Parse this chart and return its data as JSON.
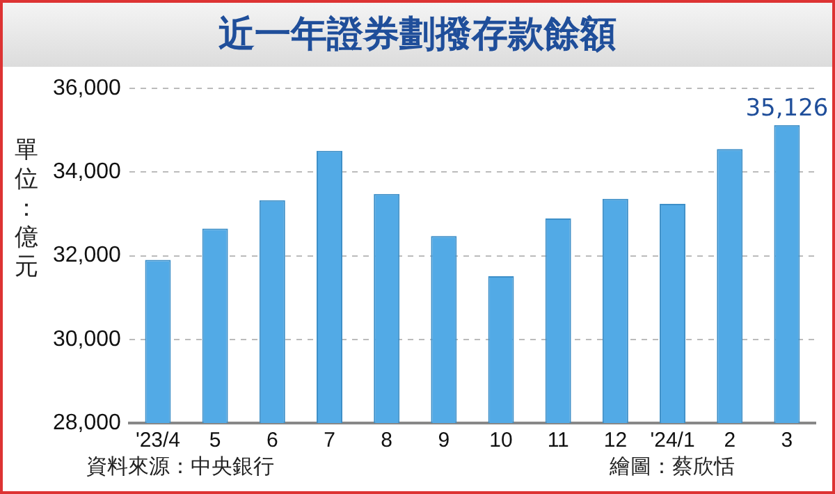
{
  "chart_data": {
    "type": "bar",
    "title": "近一年證券劃撥存款餘額",
    "ylabel": "單位：億元",
    "categories": [
      "'23/4",
      "5",
      "6",
      "7",
      "8",
      "9",
      "10",
      "11",
      "12",
      "'24/1",
      "2",
      "3"
    ],
    "values": [
      31900,
      32650,
      33330,
      34510,
      33480,
      32470,
      31510,
      32890,
      33360,
      33240,
      34550,
      35126
    ],
    "value_labels": [
      null,
      null,
      null,
      null,
      null,
      null,
      null,
      null,
      null,
      null,
      null,
      "35,126"
    ],
    "color": "#52aae6",
    "ylim": [
      28000,
      36000
    ],
    "yticks": [
      {
        "value": 28000,
        "label": "28,000"
      },
      {
        "value": 30000,
        "label": "30,000"
      },
      {
        "value": 32000,
        "label": "32,000"
      },
      {
        "value": 34000,
        "label": "34,000"
      },
      {
        "value": 36000,
        "label": "36,000"
      }
    ],
    "grid": "y",
    "annotations": [
      "資料來源：中央銀行",
      "繪圖：蔡欣恬"
    ]
  }
}
